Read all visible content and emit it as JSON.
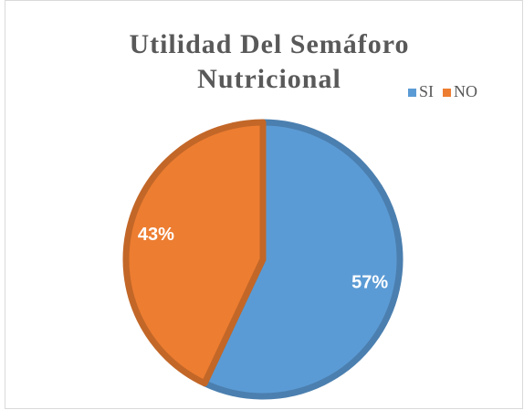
{
  "chart_data": {
    "type": "pie",
    "title": "Utilidad Del Semáforo Nutricional",
    "categories": [
      "SI",
      "NO"
    ],
    "values": [
      57,
      43
    ],
    "value_labels": [
      "57%",
      "43%"
    ],
    "colors": [
      "#5b9bd5",
      "#ed7d31"
    ],
    "legend": "top-right"
  }
}
